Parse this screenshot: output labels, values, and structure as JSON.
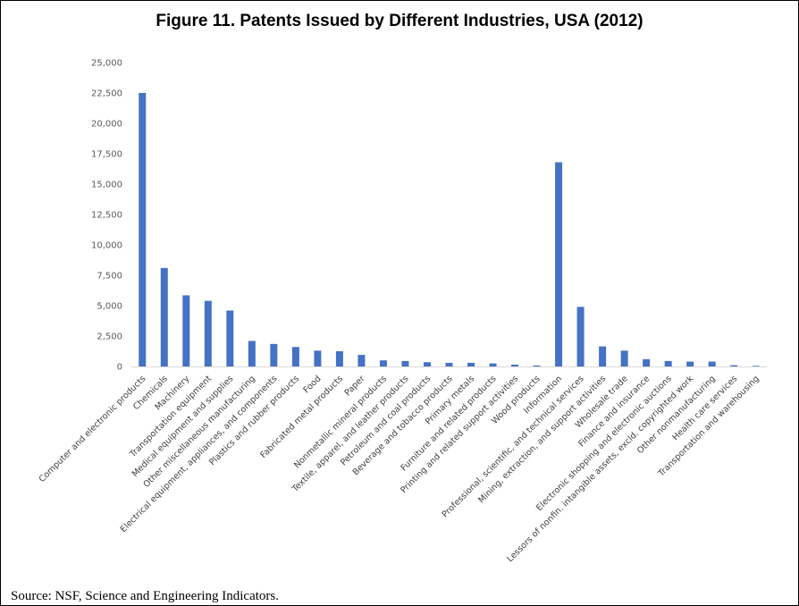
{
  "title": "Figure 11. Patents Issued by Different Industries, USA (2012)",
  "source": "Source: NSF, Science and Engineering Indicators.",
  "colors": {
    "bar": "#4472C4",
    "axis": "#D9D9D9",
    "tick_text": "#595959"
  },
  "chart_data": {
    "type": "bar",
    "xlabel": "",
    "ylabel": "",
    "ylim": [
      0,
      25000
    ],
    "yticks": [
      "0",
      "2,500",
      "5,000",
      "7,500",
      "10,000",
      "12,500",
      "15,000",
      "17,500",
      "20,000",
      "22,500",
      "25,000"
    ],
    "grid": false,
    "legend": "none",
    "categories": [
      "Computer and electronic products",
      "Chemicals",
      "Machinery",
      "Transportation equipment",
      "Medical equipment and supplies",
      "Other miscellaneous manufacturing",
      "Electrical equipment, appliances, and components",
      "Plastics and rubber products",
      "Food",
      "Fabricated metal products",
      "Paper",
      "Nonmetallic mineral products",
      "Textile, apparel, and leather products",
      "Petroleum and coal products",
      "Beverage and tobacco products",
      "Primary metals",
      "Furniture and related products",
      "Printing and related support activities",
      "Wood products",
      "Information",
      "Professional, scientific, and technical services",
      "Mining, extraction, and support activities",
      "Wholesale trade",
      "Finance and insurance",
      "Electronic shopping and electronic auctions",
      "Lessors of nonfin. intangible assets, excld. copyrighted work",
      "Other nonmanufacturing",
      "Health care services",
      "Transportation and warehousing"
    ],
    "values": [
      22500,
      8100,
      5850,
      5400,
      4600,
      2100,
      1850,
      1600,
      1300,
      1250,
      950,
      500,
      450,
      350,
      300,
      300,
      250,
      150,
      80,
      16800,
      4900,
      1650,
      1300,
      600,
      450,
      400,
      400,
      100,
      50
    ]
  }
}
